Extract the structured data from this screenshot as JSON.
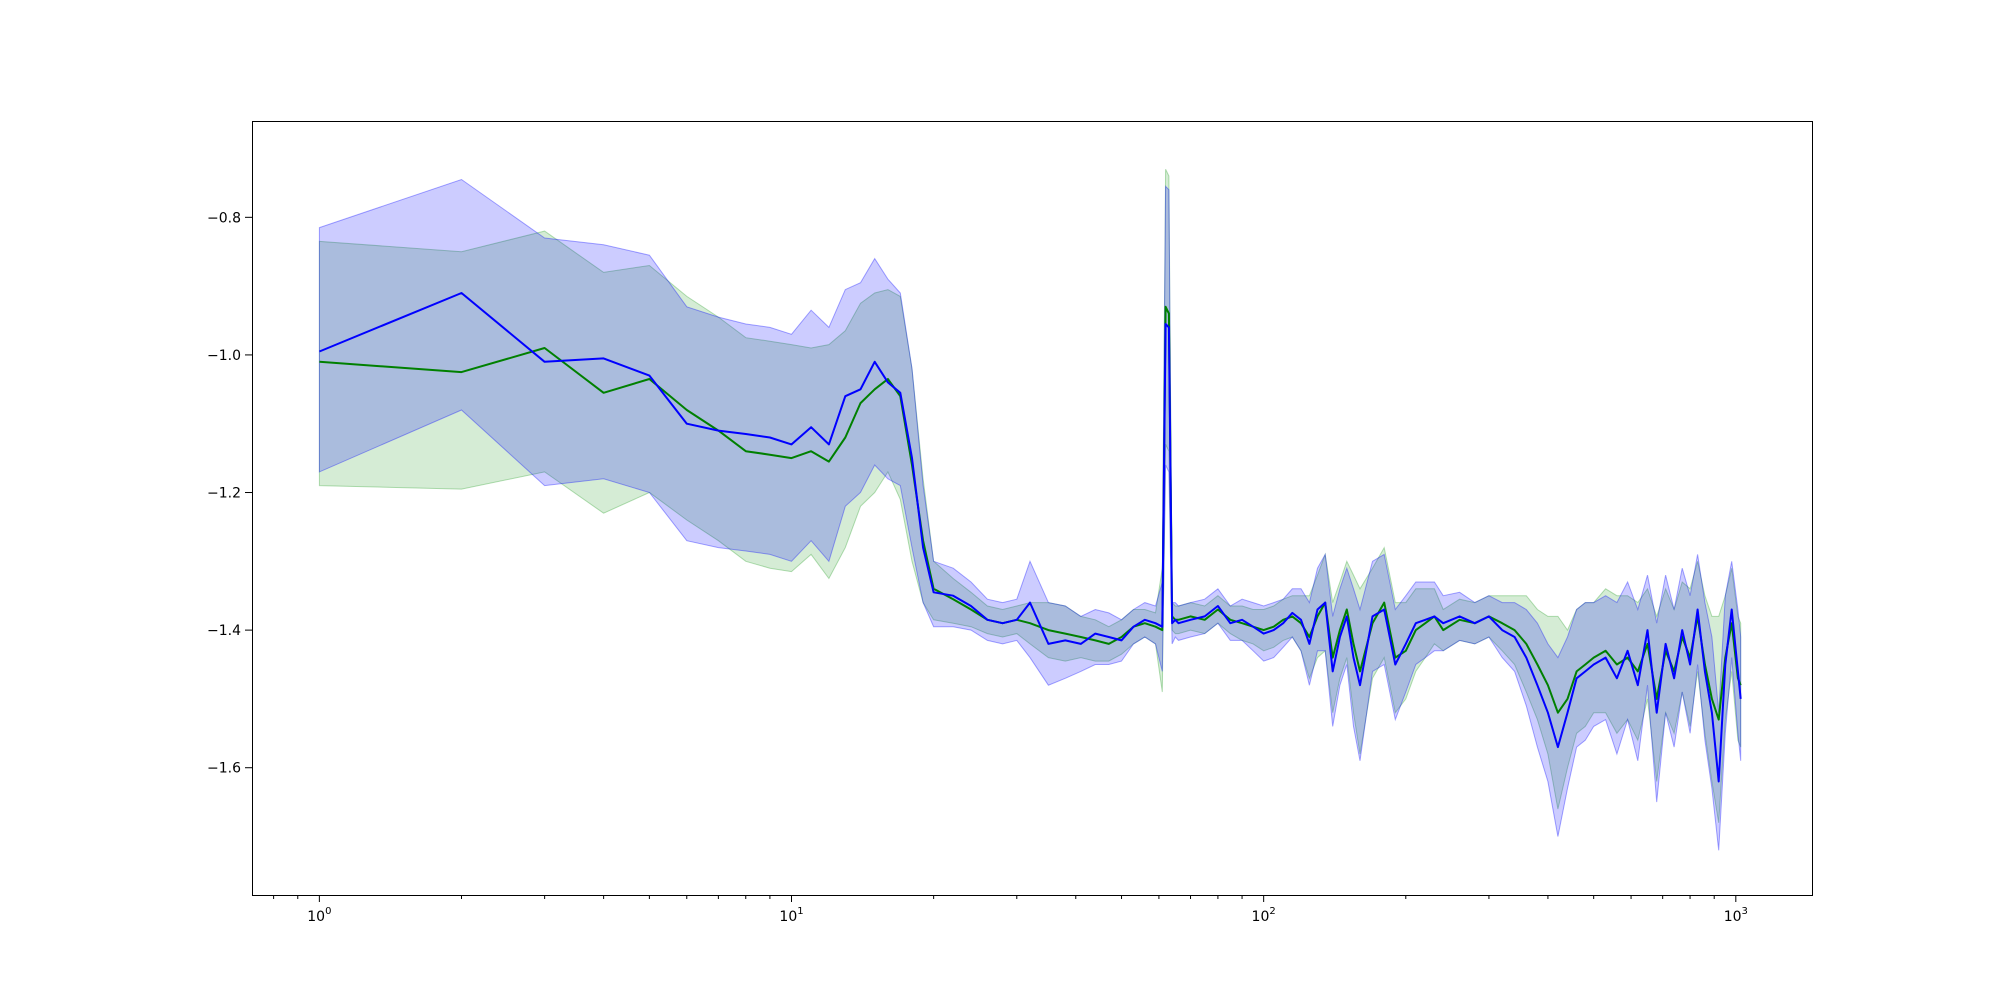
{
  "chart_data": {
    "type": "line",
    "title": "",
    "xlabel": "",
    "ylabel": "",
    "xscale": "log",
    "xlim": [
      0.72,
      1450
    ],
    "ylim": [
      -1.785,
      -0.66
    ],
    "grid": false,
    "legend": "none",
    "x_ticks": [
      {
        "value": 1,
        "base": "10",
        "exp": "0"
      },
      {
        "value": 10,
        "base": "10",
        "exp": "1"
      },
      {
        "value": 100,
        "base": "10",
        "exp": "2"
      },
      {
        "value": 1000,
        "base": "10",
        "exp": "3"
      }
    ],
    "y_ticks": [
      {
        "value": -0.8,
        "label": "−0.8"
      },
      {
        "value": -1.0,
        "label": "−1.0"
      },
      {
        "value": -1.2,
        "label": "−1.2"
      },
      {
        "value": -1.4,
        "label": "−1.4"
      },
      {
        "value": -1.6,
        "label": "−1.6"
      }
    ],
    "series": [
      {
        "color": "#008000",
        "band_color": "#2ca02c",
        "x": [
          1,
          2,
          3,
          4,
          5,
          6,
          7,
          8,
          9,
          10,
          11,
          12,
          13,
          14,
          15,
          16,
          17,
          18,
          19,
          20,
          22,
          24,
          26,
          28,
          30,
          32,
          35,
          38,
          41,
          44,
          47,
          50,
          53,
          56,
          59,
          61,
          62,
          63,
          64,
          65,
          66,
          70,
          75,
          80,
          85,
          90,
          95,
          100,
          105,
          110,
          115,
          120,
          125,
          130,
          135,
          140,
          145,
          150,
          155,
          160,
          170,
          180,
          190,
          200,
          210,
          220,
          230,
          240,
          260,
          280,
          300,
          320,
          340,
          360,
          380,
          400,
          420,
          440,
          460,
          480,
          500,
          530,
          560,
          590,
          620,
          650,
          680,
          710,
          740,
          770,
          800,
          830,
          860,
          890,
          920,
          950,
          980,
          1010,
          1024
        ],
        "values": [
          -1.01,
          -1.025,
          -0.99,
          -1.055,
          -1.035,
          -1.08,
          -1.11,
          -1.14,
          -1.145,
          -1.15,
          -1.14,
          -1.155,
          -1.12,
          -1.07,
          -1.05,
          -1.035,
          -1.06,
          -1.16,
          -1.27,
          -1.34,
          -1.355,
          -1.37,
          -1.385,
          -1.39,
          -1.385,
          -1.39,
          -1.4,
          -1.405,
          -1.41,
          -1.415,
          -1.42,
          -1.41,
          -1.395,
          -1.39,
          -1.395,
          -1.4,
          -0.93,
          -0.94,
          -1.38,
          -1.385,
          -1.385,
          -1.38,
          -1.385,
          -1.37,
          -1.385,
          -1.39,
          -1.395,
          -1.4,
          -1.395,
          -1.385,
          -1.38,
          -1.39,
          -1.41,
          -1.38,
          -1.36,
          -1.44,
          -1.4,
          -1.37,
          -1.42,
          -1.46,
          -1.39,
          -1.36,
          -1.44,
          -1.43,
          -1.4,
          -1.39,
          -1.38,
          -1.4,
          -1.385,
          -1.39,
          -1.38,
          -1.39,
          -1.4,
          -1.42,
          -1.45,
          -1.48,
          -1.52,
          -1.5,
          -1.46,
          -1.45,
          -1.44,
          -1.43,
          -1.45,
          -1.44,
          -1.46,
          -1.42,
          -1.5,
          -1.43,
          -1.46,
          -1.41,
          -1.44,
          -1.38,
          -1.45,
          -1.5,
          -1.53,
          -1.44,
          -1.39,
          -1.47,
          -1.48
        ],
        "lower": [
          -1.19,
          -1.195,
          -1.17,
          -1.23,
          -1.2,
          -1.24,
          -1.27,
          -1.3,
          -1.31,
          -1.315,
          -1.29,
          -1.325,
          -1.28,
          -1.22,
          -1.2,
          -1.17,
          -1.21,
          -1.3,
          -1.36,
          -1.385,
          -1.39,
          -1.395,
          -1.405,
          -1.41,
          -1.405,
          -1.42,
          -1.44,
          -1.445,
          -1.44,
          -1.445,
          -1.445,
          -1.435,
          -1.42,
          -1.41,
          -1.42,
          -1.49,
          -1.13,
          -1.14,
          -1.4,
          -1.405,
          -1.405,
          -1.4,
          -1.405,
          -1.39,
          -1.405,
          -1.415,
          -1.42,
          -1.43,
          -1.425,
          -1.415,
          -1.41,
          -1.43,
          -1.47,
          -1.44,
          -1.43,
          -1.52,
          -1.47,
          -1.44,
          -1.52,
          -1.58,
          -1.47,
          -1.44,
          -1.52,
          -1.5,
          -1.46,
          -1.44,
          -1.42,
          -1.43,
          -1.415,
          -1.42,
          -1.41,
          -1.43,
          -1.45,
          -1.49,
          -1.53,
          -1.58,
          -1.66,
          -1.6,
          -1.55,
          -1.54,
          -1.52,
          -1.52,
          -1.55,
          -1.53,
          -1.56,
          -1.5,
          -1.62,
          -1.52,
          -1.55,
          -1.49,
          -1.54,
          -1.46,
          -1.55,
          -1.62,
          -1.68,
          -1.53,
          -1.46,
          -1.56,
          -1.57
        ],
        "upper": [
          -0.835,
          -0.85,
          -0.82,
          -0.88,
          -0.87,
          -0.915,
          -0.945,
          -0.975,
          -0.98,
          -0.985,
          -0.99,
          -0.985,
          -0.965,
          -0.925,
          -0.91,
          -0.905,
          -0.915,
          -1.02,
          -1.18,
          -1.3,
          -1.325,
          -1.345,
          -1.365,
          -1.37,
          -1.365,
          -1.36,
          -1.36,
          -1.365,
          -1.38,
          -1.385,
          -1.395,
          -1.385,
          -1.37,
          -1.37,
          -1.375,
          -1.31,
          -0.73,
          -0.74,
          -1.36,
          -1.365,
          -1.365,
          -1.36,
          -1.365,
          -1.35,
          -1.365,
          -1.365,
          -1.37,
          -1.37,
          -1.365,
          -1.355,
          -1.35,
          -1.35,
          -1.35,
          -1.32,
          -1.29,
          -1.36,
          -1.33,
          -1.3,
          -1.32,
          -1.34,
          -1.31,
          -1.28,
          -1.36,
          -1.36,
          -1.34,
          -1.34,
          -1.34,
          -1.37,
          -1.355,
          -1.36,
          -1.35,
          -1.35,
          -1.35,
          -1.35,
          -1.37,
          -1.38,
          -1.38,
          -1.4,
          -1.37,
          -1.36,
          -1.36,
          -1.34,
          -1.35,
          -1.35,
          -1.36,
          -1.34,
          -1.38,
          -1.34,
          -1.37,
          -1.33,
          -1.34,
          -1.3,
          -1.35,
          -1.38,
          -1.38,
          -1.35,
          -1.31,
          -1.38,
          -1.39
        ]
      },
      {
        "color": "#0000ff",
        "band_color": "#0000ff",
        "x": [
          1,
          2,
          3,
          4,
          5,
          6,
          7,
          8,
          9,
          10,
          11,
          12,
          13,
          14,
          15,
          16,
          17,
          18,
          19,
          20,
          22,
          24,
          26,
          28,
          30,
          32,
          35,
          38,
          41,
          44,
          47,
          50,
          53,
          56,
          59,
          61,
          62,
          63,
          64,
          65,
          66,
          70,
          75,
          80,
          85,
          90,
          95,
          100,
          105,
          110,
          115,
          120,
          125,
          130,
          135,
          140,
          145,
          150,
          155,
          160,
          170,
          180,
          190,
          200,
          210,
          220,
          230,
          240,
          260,
          280,
          300,
          320,
          340,
          360,
          380,
          400,
          420,
          440,
          460,
          480,
          500,
          530,
          560,
          590,
          620,
          650,
          680,
          710,
          740,
          770,
          800,
          830,
          860,
          890,
          920,
          950,
          980,
          1010,
          1024
        ],
        "values": [
          -0.995,
          -0.91,
          -1.01,
          -1.005,
          -1.03,
          -1.1,
          -1.11,
          -1.115,
          -1.12,
          -1.13,
          -1.105,
          -1.13,
          -1.06,
          -1.05,
          -1.01,
          -1.04,
          -1.055,
          -1.15,
          -1.28,
          -1.345,
          -1.35,
          -1.365,
          -1.385,
          -1.39,
          -1.385,
          -1.36,
          -1.42,
          -1.415,
          -1.42,
          -1.405,
          -1.41,
          -1.415,
          -1.395,
          -1.385,
          -1.39,
          -1.395,
          -0.955,
          -0.96,
          -1.39,
          -1.385,
          -1.39,
          -1.385,
          -1.38,
          -1.365,
          -1.39,
          -1.385,
          -1.395,
          -1.405,
          -1.4,
          -1.39,
          -1.375,
          -1.385,
          -1.42,
          -1.37,
          -1.36,
          -1.46,
          -1.41,
          -1.38,
          -1.44,
          -1.48,
          -1.38,
          -1.37,
          -1.45,
          -1.42,
          -1.39,
          -1.385,
          -1.38,
          -1.39,
          -1.38,
          -1.39,
          -1.38,
          -1.4,
          -1.41,
          -1.44,
          -1.48,
          -1.52,
          -1.57,
          -1.52,
          -1.47,
          -1.46,
          -1.45,
          -1.44,
          -1.47,
          -1.43,
          -1.48,
          -1.4,
          -1.52,
          -1.42,
          -1.47,
          -1.4,
          -1.45,
          -1.37,
          -1.46,
          -1.52,
          -1.62,
          -1.45,
          -1.37,
          -1.46,
          -1.5
        ],
        "lower": [
          -1.17,
          -1.08,
          -1.19,
          -1.18,
          -1.2,
          -1.27,
          -1.28,
          -1.285,
          -1.29,
          -1.3,
          -1.27,
          -1.3,
          -1.22,
          -1.2,
          -1.16,
          -1.18,
          -1.19,
          -1.28,
          -1.36,
          -1.395,
          -1.395,
          -1.4,
          -1.415,
          -1.42,
          -1.415,
          -1.44,
          -1.48,
          -1.47,
          -1.46,
          -1.45,
          -1.45,
          -1.445,
          -1.42,
          -1.41,
          -1.42,
          -1.46,
          -1.16,
          -1.17,
          -1.42,
          -1.41,
          -1.415,
          -1.41,
          -1.405,
          -1.39,
          -1.415,
          -1.415,
          -1.43,
          -1.445,
          -1.44,
          -1.425,
          -1.41,
          -1.43,
          -1.48,
          -1.43,
          -1.43,
          -1.54,
          -1.48,
          -1.45,
          -1.54,
          -1.59,
          -1.46,
          -1.45,
          -1.53,
          -1.49,
          -1.45,
          -1.44,
          -1.43,
          -1.43,
          -1.415,
          -1.42,
          -1.41,
          -1.44,
          -1.46,
          -1.51,
          -1.57,
          -1.62,
          -1.7,
          -1.63,
          -1.57,
          -1.56,
          -1.54,
          -1.53,
          -1.58,
          -1.53,
          -1.59,
          -1.48,
          -1.65,
          -1.52,
          -1.57,
          -1.49,
          -1.55,
          -1.45,
          -1.56,
          -1.63,
          -1.72,
          -1.55,
          -1.44,
          -1.55,
          -1.59
        ],
        "upper": [
          -0.815,
          -0.745,
          -0.83,
          -0.84,
          -0.855,
          -0.93,
          -0.945,
          -0.955,
          -0.96,
          -0.97,
          -0.935,
          -0.96,
          -0.905,
          -0.895,
          -0.86,
          -0.89,
          -0.91,
          -1.02,
          -1.19,
          -1.3,
          -1.31,
          -1.33,
          -1.355,
          -1.36,
          -1.355,
          -1.3,
          -1.36,
          -1.365,
          -1.38,
          -1.37,
          -1.375,
          -1.385,
          -1.37,
          -1.36,
          -1.365,
          -1.33,
          -0.755,
          -0.76,
          -1.36,
          -1.36,
          -1.365,
          -1.36,
          -1.355,
          -1.34,
          -1.365,
          -1.355,
          -1.36,
          -1.365,
          -1.36,
          -1.355,
          -1.34,
          -1.34,
          -1.36,
          -1.31,
          -1.29,
          -1.38,
          -1.34,
          -1.31,
          -1.34,
          -1.37,
          -1.3,
          -1.29,
          -1.37,
          -1.35,
          -1.33,
          -1.33,
          -1.33,
          -1.35,
          -1.345,
          -1.36,
          -1.35,
          -1.36,
          -1.36,
          -1.37,
          -1.39,
          -1.42,
          -1.44,
          -1.41,
          -1.37,
          -1.36,
          -1.36,
          -1.35,
          -1.36,
          -1.33,
          -1.37,
          -1.32,
          -1.39,
          -1.32,
          -1.37,
          -1.31,
          -1.35,
          -1.29,
          -1.36,
          -1.41,
          -1.52,
          -1.35,
          -1.3,
          -1.37,
          -1.41
        ]
      }
    ]
  }
}
